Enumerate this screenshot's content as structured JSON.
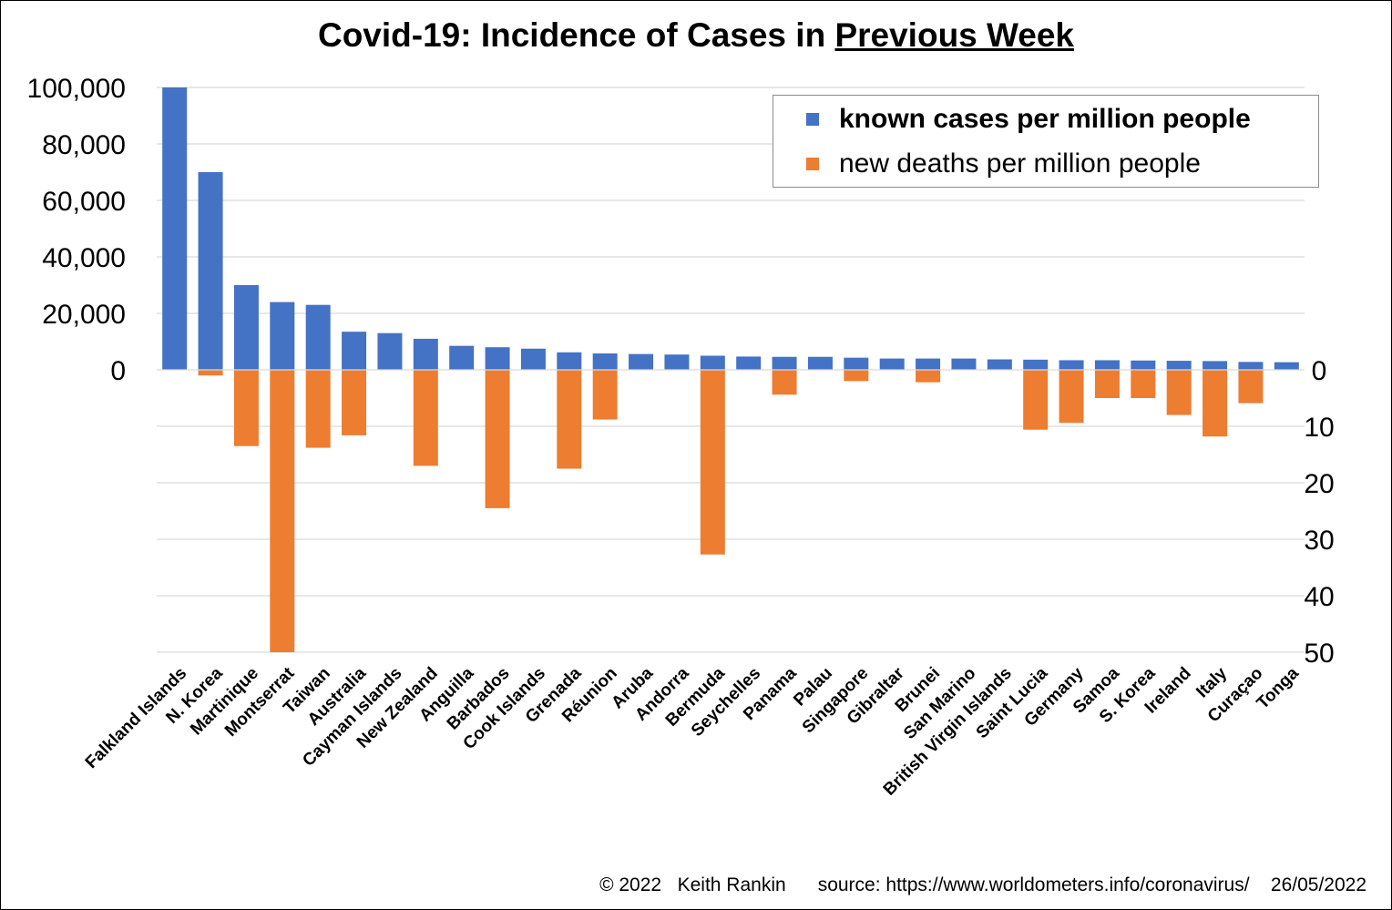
{
  "chart_data": {
    "type": "bar",
    "title_prefix": "Covid-19: Incidence of Cases in ",
    "title_emphasis": "Previous Week",
    "categories": [
      "Falkland Islands",
      "N. Korea",
      "Martinique",
      "Montserrat",
      "Taiwan",
      "Australia",
      "Cayman Islands",
      "New Zealand",
      "Anguilla",
      "Barbados",
      "Cook Islands",
      "Grenada",
      "Réunion",
      "Aruba",
      "Andorra",
      "Bermuda",
      "Seychelles",
      "Panama",
      "Palau",
      "Singapore",
      "Gibraltar",
      "Brunei",
      "San Marino",
      "British Virgin Islands",
      "Saint Lucia",
      "Germany",
      "Samoa",
      "S. Korea",
      "Ireland",
      "Italy",
      "Curaçao",
      "Tonga"
    ],
    "series": [
      {
        "name": "known cases per million people",
        "axis": "left",
        "color": "#4472C4",
        "values": [
          100000,
          70000,
          30000,
          24000,
          23000,
          13500,
          13000,
          11000,
          8500,
          8000,
          7500,
          6200,
          5800,
          5600,
          5400,
          5000,
          4700,
          4600,
          4600,
          4300,
          4000,
          4000,
          4000,
          3700,
          3600,
          3400,
          3400,
          3300,
          3200,
          3100,
          2800,
          2700
        ]
      },
      {
        "name": "new deaths per million people",
        "axis": "right",
        "color": "#ED7D31",
        "values": [
          0,
          1,
          13.5,
          50,
          13.8,
          11.6,
          0,
          17,
          0,
          24.5,
          0,
          17.5,
          8.8,
          0,
          0,
          32.7,
          0,
          4.4,
          0,
          2,
          0,
          2.2,
          0,
          0,
          10.6,
          9.4,
          5,
          5,
          8,
          11.8,
          5.9,
          0
        ]
      }
    ],
    "left_axis": {
      "range": [
        0,
        100000
      ],
      "ticks": [
        "0",
        "20,000",
        "40,000",
        "60,000",
        "80,000",
        "100,000"
      ]
    },
    "right_axis": {
      "range": [
        0,
        50
      ],
      "ticks": [
        "0",
        "10",
        "20",
        "30",
        "40",
        "50"
      ],
      "inverted": true
    },
    "grid": true,
    "legend_position": "top-right"
  },
  "footer": {
    "copyright": "© 2022   Keith Rankin",
    "source": "source: https://www.worldometers.info/coronavirus/",
    "date": "26/05/2022"
  }
}
